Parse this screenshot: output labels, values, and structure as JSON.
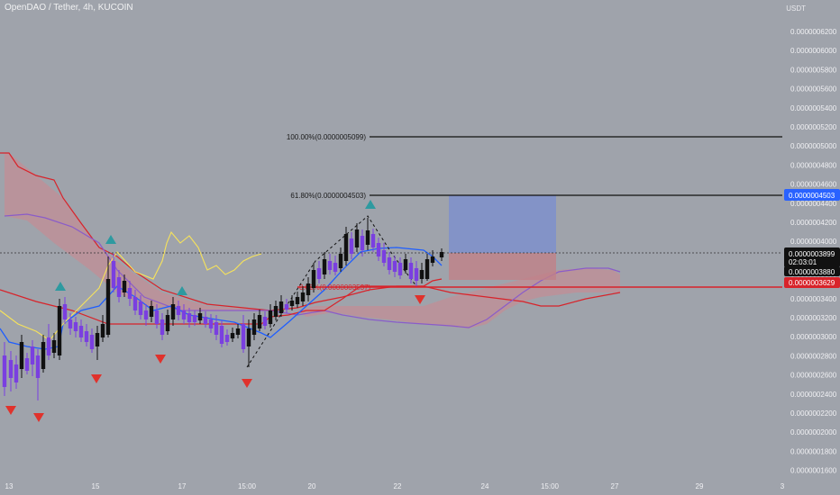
{
  "header": {
    "title": "OpenDAO / Tether, 4h, KUCOIN",
    "quote_currency": "USDT"
  },
  "colors": {
    "background": "#9fa3ab",
    "up_candle": "#111111",
    "down_candle": "#7a3fe0",
    "cloud_red": "#d8232a",
    "cloud_fill": "#c78a92",
    "tenkan_blue": "#1e5eff",
    "yellow_line": "#f7e35a",
    "purple_line": "#8a5cc9",
    "buy_marker": "#2e9aa0",
    "sell_marker": "#e0322c",
    "price_tag_blue": "#2962ff",
    "price_tag_red": "#d8232a"
  },
  "price_axis": {
    "ticks": [
      "0.0000006200",
      "0.0000006000",
      "0.0000005800",
      "0.0000005600",
      "0.0000005400",
      "0.0000005200",
      "0.0000005000",
      "0.0000004800",
      "0.0000004600",
      "0.0000004400",
      "0.0000004200",
      "0.0000004000",
      "0.0000003800",
      "0.0000003600",
      "0.0000003400",
      "0.0000003200",
      "0.0000003000",
      "0.0000002800",
      "0.0000002600",
      "0.0000002400",
      "0.0000002200",
      "0.0000002000",
      "0.0000001800",
      "0.0000001600"
    ],
    "tags": [
      {
        "label": "0.0000004503",
        "style": "blue"
      },
      {
        "label": "0.0000003899",
        "sub": "02:03:01",
        "style": "black"
      },
      {
        "label": "0.0000003880",
        "style": "black"
      },
      {
        "label": "0.0000003629",
        "style": "red"
      }
    ]
  },
  "time_axis": {
    "ticks": [
      "13",
      "15",
      "17",
      "15:00",
      "20",
      "22",
      "24",
      "15:00",
      "27",
      "29",
      "3"
    ]
  },
  "fib_levels": [
    {
      "label": "100.00%(0.0000005099)"
    },
    {
      "label": "61.80%(0.0000004503)"
    },
    {
      "label": "0.00%(0.0000003537)"
    }
  ]
}
